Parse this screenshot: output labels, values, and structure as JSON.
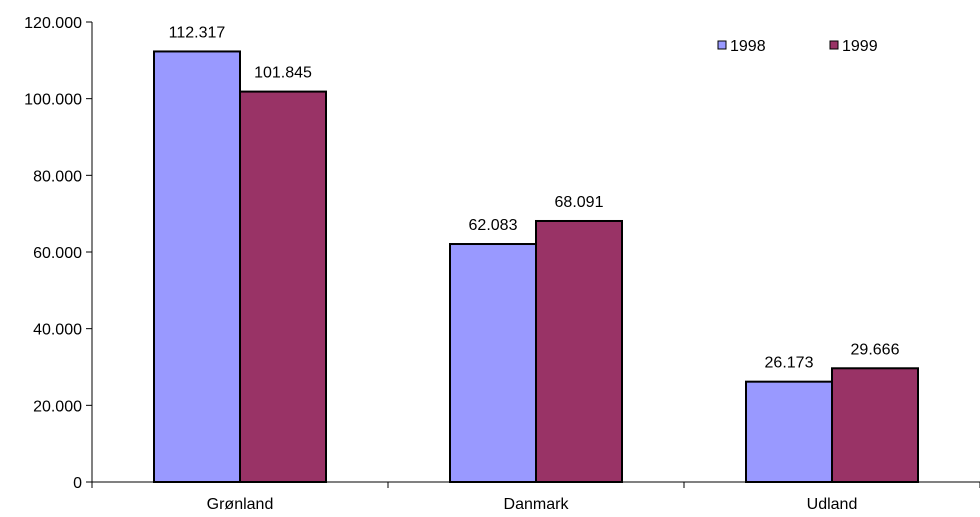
{
  "chart_data": {
    "type": "bar",
    "categories": [
      "Grønland",
      "Danmark",
      "Udland"
    ],
    "series": [
      {
        "name": "1998",
        "values": [
          112317,
          62083,
          26173
        ],
        "labels": [
          "112.317",
          "62.083",
          "26.173"
        ],
        "color": "#9999ff"
      },
      {
        "name": "1999",
        "values": [
          101845,
          68091,
          29666
        ],
        "labels": [
          "101.845",
          "68.091",
          "29.666"
        ],
        "color": "#993366"
      }
    ],
    "ylim": [
      0,
      120000
    ],
    "yticks": [
      0,
      20000,
      40000,
      60000,
      80000,
      100000,
      120000
    ],
    "ytick_labels": [
      "0",
      "20.000",
      "40.000",
      "60.000",
      "80.000",
      "100.000",
      "120.000"
    ],
    "grid": false,
    "legend": "top-right"
  }
}
